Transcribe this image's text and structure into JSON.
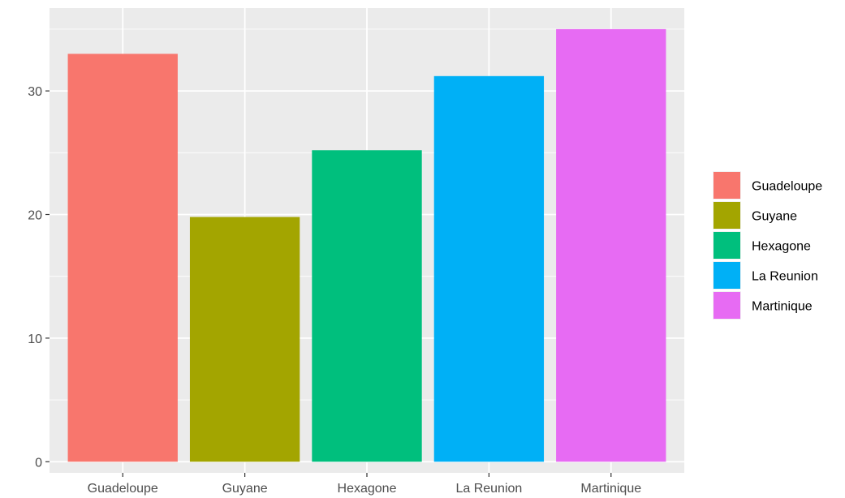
{
  "chart_data": {
    "type": "bar",
    "categories": [
      "Guadeloupe",
      "Guyane",
      "Hexagone",
      "La Reunion",
      "Martinique"
    ],
    "values": [
      33.0,
      19.8,
      25.2,
      31.2,
      35.0
    ],
    "colors": [
      "#F8766D",
      "#A3A500",
      "#00BF7D",
      "#00B0F6",
      "#E76BF3"
    ],
    "title": "",
    "xlabel": "",
    "ylabel": "",
    "ylim": [
      -0.9,
      36.7
    ],
    "yticks": [
      0,
      10,
      20,
      30
    ],
    "ytick_labels": [
      "0",
      "10",
      "20",
      "30"
    ],
    "grid": true,
    "panel_background": "#EBEBEB",
    "gridline_color": "#FFFFFF",
    "legend": {
      "placement": "right",
      "labels": [
        "Guadeloupe",
        "Guyane",
        "Hexagone",
        "La Reunion",
        "Martinique"
      ]
    }
  }
}
